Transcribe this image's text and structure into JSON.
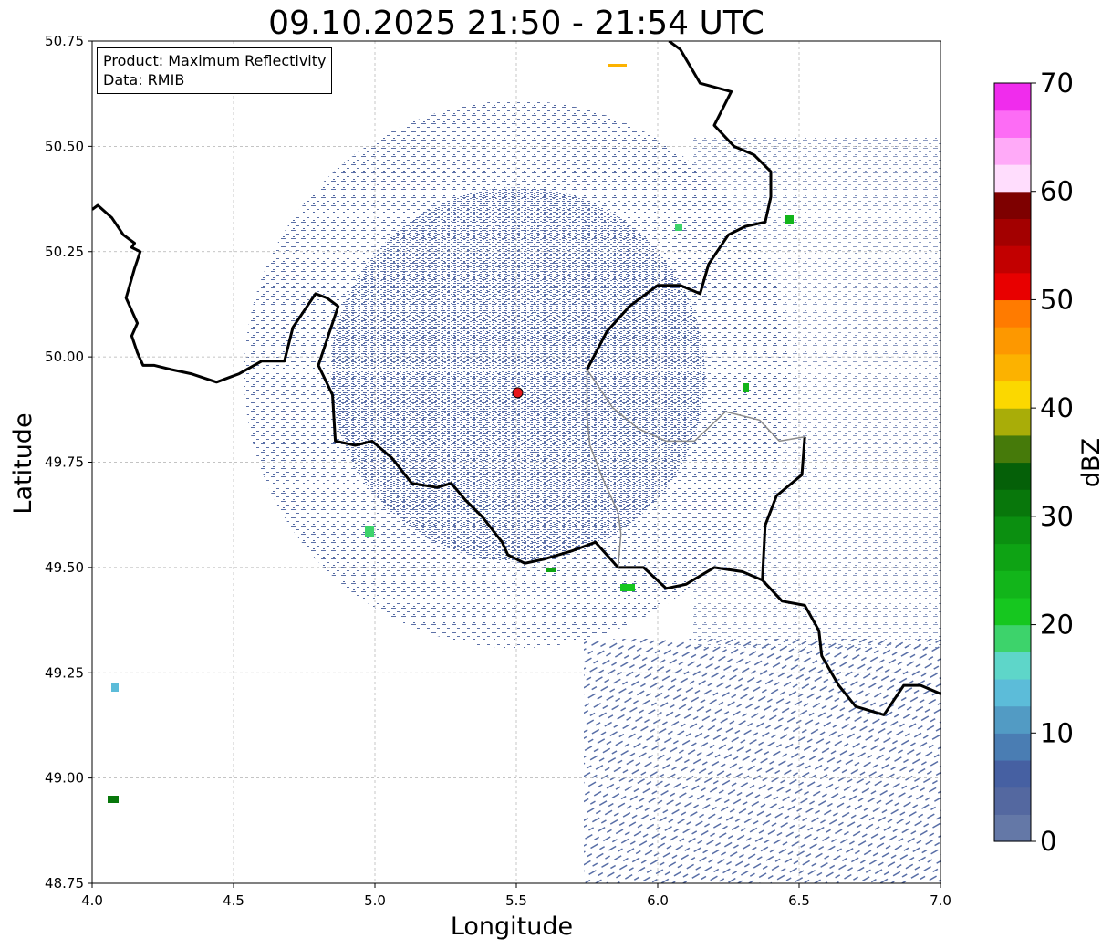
{
  "title": "09.10.2025 21:50 - 21:54 UTC",
  "info": {
    "product_line": "Product: Maximum Reflectivity",
    "data_line": "Data: RMIB"
  },
  "axes": {
    "xlabel": "Longitude",
    "ylabel": "Latitude",
    "xlim": [
      4.0,
      7.0
    ],
    "ylim": [
      48.75,
      50.75
    ],
    "xticks": [
      "4.0",
      "4.5",
      "5.0",
      "5.5",
      "6.0",
      "6.5",
      "7.0"
    ],
    "yticks": [
      "48.75",
      "49.00",
      "49.25",
      "49.50",
      "49.75",
      "50.00",
      "50.25",
      "50.50",
      "50.75"
    ],
    "grid": true
  },
  "radar_site": {
    "lon": 5.505,
    "lat": 49.915,
    "color": "#e8161a"
  },
  "colorbar": {
    "label": "dBZ",
    "range": [
      0,
      70
    ],
    "ticks": [
      "0",
      "10",
      "20",
      "30",
      "40",
      "50",
      "60",
      "70"
    ],
    "colors": [
      "#6478a7",
      "#5468a0",
      "#4660a2",
      "#4a7db3",
      "#529bc4",
      "#5cbcd9",
      "#5ed6c9",
      "#3dd36b",
      "#16c71f",
      "#12b51a",
      "#0ea314",
      "#0b8f10",
      "#08770b",
      "#056008",
      "#467a0a",
      "#a9ad08",
      "#fbd800",
      "#fcb200",
      "#fd9800",
      "#ff7b00",
      "#e80000",
      "#c20000",
      "#a30000",
      "#7e0000",
      "#ffddfd",
      "#ffaaf8",
      "#fd6cf5",
      "#f02ced"
    ]
  },
  "borders": [
    [
      [
        4.0,
        50.35
      ],
      [
        4.02,
        50.36
      ],
      [
        4.07,
        50.33
      ],
      [
        4.11,
        50.29
      ],
      [
        4.15,
        50.27
      ],
      [
        4.14,
        50.26
      ],
      [
        4.17,
        50.25
      ],
      [
        4.15,
        50.21
      ],
      [
        4.12,
        50.14
      ],
      [
        4.16,
        50.08
      ],
      [
        4.14,
        50.05
      ],
      [
        4.16,
        50.01
      ],
      [
        4.18,
        49.98
      ],
      [
        4.22,
        49.98
      ],
      [
        4.28,
        49.97
      ],
      [
        4.35,
        49.96
      ],
      [
        4.44,
        49.94
      ],
      [
        4.52,
        49.96
      ],
      [
        4.6,
        49.99
      ],
      [
        4.68,
        49.99
      ],
      [
        4.71,
        50.07
      ],
      [
        4.79,
        50.15
      ],
      [
        4.83,
        50.14
      ],
      [
        4.87,
        50.12
      ],
      [
        4.83,
        50.04
      ],
      [
        4.8,
        49.98
      ],
      [
        4.85,
        49.91
      ],
      [
        4.86,
        49.8
      ],
      [
        4.93,
        49.79
      ],
      [
        4.99,
        49.8
      ],
      [
        5.06,
        49.76
      ],
      [
        5.13,
        49.7
      ],
      [
        5.22,
        49.69
      ],
      [
        5.27,
        49.7
      ],
      [
        5.32,
        49.66
      ],
      [
        5.38,
        49.62
      ],
      [
        5.45,
        49.56
      ],
      [
        5.47,
        49.53
      ],
      [
        5.53,
        49.51
      ],
      [
        5.6,
        49.52
      ],
      [
        5.7,
        49.54
      ],
      [
        5.78,
        49.56
      ],
      [
        5.86,
        49.5
      ],
      [
        5.95,
        49.5
      ],
      [
        6.03,
        49.45
      ],
      [
        6.1,
        49.46
      ],
      [
        6.2,
        49.5
      ],
      [
        6.3,
        49.49
      ],
      [
        6.37,
        49.47
      ],
      [
        6.44,
        49.42
      ],
      [
        6.52,
        49.41
      ],
      [
        6.57,
        49.35
      ],
      [
        6.58,
        49.29
      ],
      [
        6.64,
        49.22
      ],
      [
        6.7,
        49.17
      ],
      [
        6.8,
        49.15
      ],
      [
        6.87,
        49.22
      ],
      [
        6.93,
        49.22
      ],
      [
        7.0,
        49.2
      ]
    ],
    [
      [
        6.52,
        49.81
      ],
      [
        6.51,
        49.72
      ],
      [
        6.42,
        49.67
      ],
      [
        6.38,
        49.6
      ],
      [
        6.37,
        49.47
      ]
    ],
    [
      [
        5.75,
        49.97
      ],
      [
        5.82,
        50.06
      ],
      [
        5.9,
        50.12
      ],
      [
        6.0,
        50.17
      ],
      [
        6.08,
        50.17
      ],
      [
        6.15,
        50.15
      ],
      [
        6.18,
        50.22
      ],
      [
        6.25,
        50.29
      ],
      [
        6.31,
        50.31
      ],
      [
        6.38,
        50.32
      ],
      [
        6.4,
        50.38
      ],
      [
        6.4,
        50.44
      ],
      [
        6.34,
        50.48
      ],
      [
        6.27,
        50.5
      ],
      [
        6.2,
        50.55
      ],
      [
        6.26,
        50.63
      ],
      [
        6.15,
        50.65
      ],
      [
        6.08,
        50.73
      ],
      [
        6.04,
        50.75
      ]
    ],
    [
      [
        5.75,
        49.97
      ],
      [
        5.84,
        49.88
      ],
      [
        5.93,
        49.83
      ],
      [
        6.03,
        49.8
      ],
      [
        6.13,
        49.8
      ],
      [
        6.24,
        49.87
      ],
      [
        6.36,
        49.85
      ],
      [
        6.43,
        49.8
      ],
      [
        6.52,
        49.81
      ]
    ],
    [
      [
        5.75,
        49.97
      ],
      [
        5.75,
        49.86
      ],
      [
        5.76,
        49.79
      ],
      [
        5.8,
        49.72
      ],
      [
        5.86,
        49.63
      ],
      [
        5.87,
        49.58
      ],
      [
        5.86,
        49.5
      ]
    ]
  ]
}
